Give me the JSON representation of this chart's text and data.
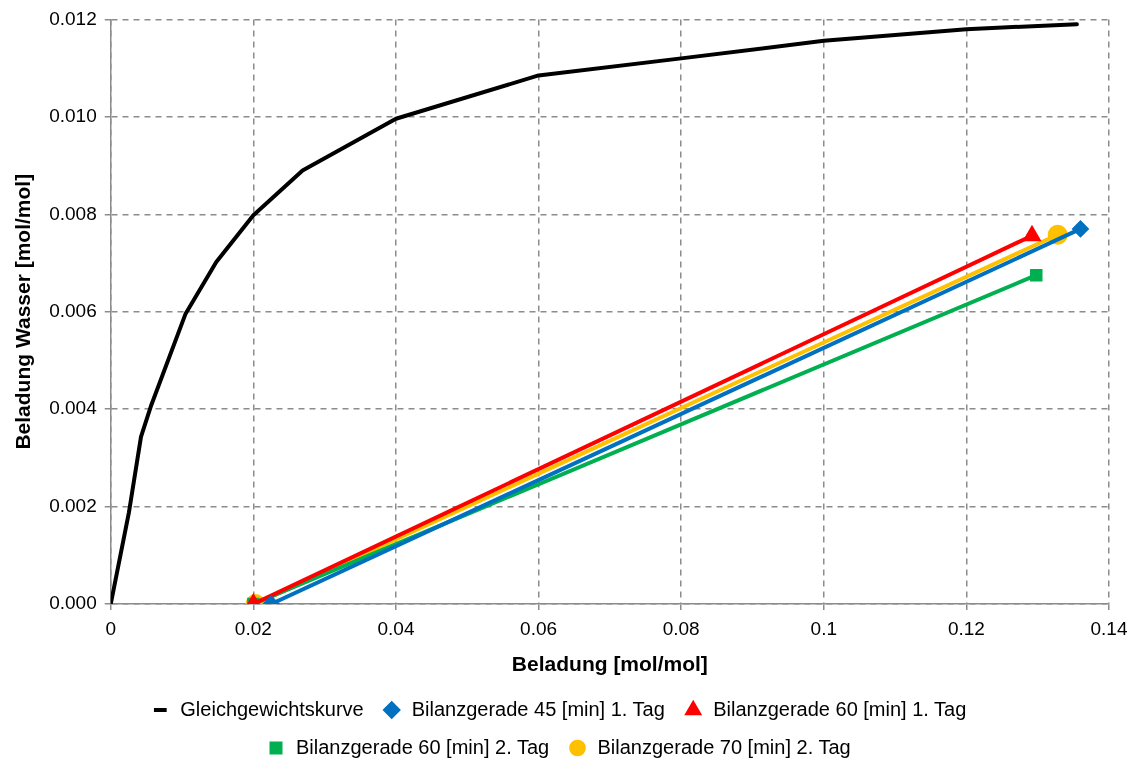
{
  "chart_data": {
    "type": "line",
    "xlabel": "Beladung [mol/mol]",
    "ylabel": "Beladung Wasser [mol/mol]",
    "xlim": [
      0,
      0.14
    ],
    "xticks": [
      0,
      0.02,
      0.04,
      0.06,
      0.08,
      0.1,
      0.12,
      0.14
    ],
    "ylim": [
      0,
      0.012
    ],
    "yticks": [
      {
        "value": 0,
        "label": "0.000"
      },
      {
        "value": 0.002,
        "label": "0.002"
      },
      {
        "value": 0.004,
        "label": "0.004"
      },
      {
        "value": 0.006,
        "label": "0.006"
      },
      {
        "value": 0.008,
        "label": "0.008"
      },
      {
        "value": 0.01,
        "label": "0.010"
      },
      {
        "value": 0.012,
        "label": "0.012"
      }
    ],
    "grid": true,
    "legend": "bottom",
    "line_style": "solid",
    "series": [
      {
        "name": "Gleichgewichtskurve",
        "color": "#000000",
        "marker": "none",
        "x": [
          0,
          0.00255,
          0.00424,
          0.00568,
          0.0105,
          0.0148,
          0.02,
          0.0269,
          0.04,
          0.06,
          0.08,
          0.1,
          0.12,
          0.1355
        ],
        "values": [
          0,
          0.00188,
          0.00343,
          0.00408,
          0.00596,
          0.00702,
          0.00798,
          0.0089,
          0.00996,
          0.01085,
          0.0112,
          0.01156,
          0.0118,
          0.0119
        ]
      },
      {
        "name": "Bilanzgerade 45 [min] 1. Tag",
        "color": "#0070c0",
        "marker": "diamond",
        "x": [
          0.0225,
          0.136
        ],
        "values": [
          0,
          0.0077
        ]
      },
      {
        "name": "Bilanzgerade 60 [min] 1. Tag",
        "color": "#ff0000",
        "marker": "triangle",
        "x": [
          0.02,
          0.1292
        ],
        "values": [
          0,
          0.00756
        ]
      },
      {
        "name": "Bilanzgerade 60 [min] 2. Tag",
        "color": "#00b050",
        "marker": "square",
        "x": [
          0.02,
          0.1298
        ],
        "values": [
          0,
          0.00675
        ]
      },
      {
        "name": "Bilanzgerade 70 [min] 2. Tag",
        "color": "#ffc000",
        "marker": "circle",
        "x": [
          0.0203,
          0.1328
        ],
        "values": [
          0,
          0.00758
        ]
      }
    ]
  }
}
